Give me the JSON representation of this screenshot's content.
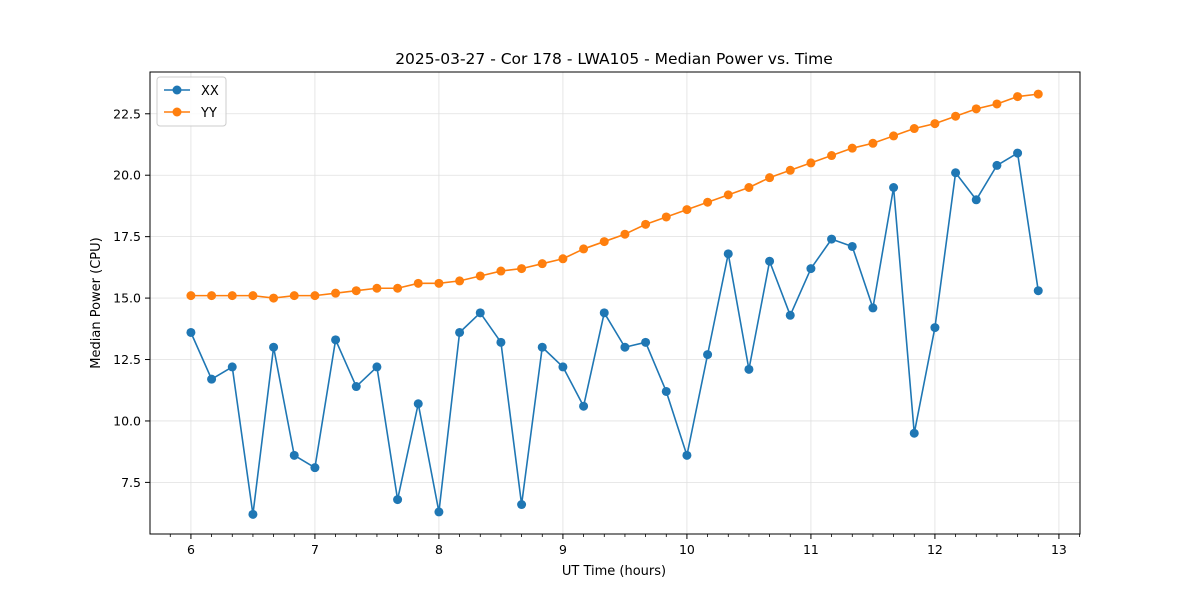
{
  "chart_data": {
    "type": "line",
    "title": "2025-03-27 - Cor 178 - LWA105 - Median Power vs. Time",
    "xlabel": "UT Time (hours)",
    "ylabel": "Median Power (CPU)",
    "xlim": [
      5.67,
      13.17
    ],
    "ylim": [
      5.4,
      24.2
    ],
    "x_ticks": [
      6,
      7,
      8,
      9,
      10,
      11,
      12,
      13
    ],
    "x_tick_labels": [
      "6",
      "7",
      "8",
      "9",
      "10",
      "11",
      "12",
      "13"
    ],
    "x_minor_step": 0.16667,
    "y_ticks": [
      7.5,
      10.0,
      12.5,
      15.0,
      17.5,
      20.0,
      22.5
    ],
    "y_tick_labels": [
      "7.5",
      "10.0",
      "12.5",
      "15.0",
      "17.5",
      "20.0",
      "22.5"
    ],
    "grid": true,
    "legend_position": "upper-left",
    "x": [
      6.0,
      6.1667,
      6.3333,
      6.5,
      6.6667,
      6.8333,
      7.0,
      7.1667,
      7.3333,
      7.5,
      7.6667,
      7.8333,
      8.0,
      8.1667,
      8.3333,
      8.5,
      8.6667,
      8.8333,
      9.0,
      9.1667,
      9.3333,
      9.5,
      9.6667,
      9.8333,
      10.0,
      10.1667,
      10.3333,
      10.5,
      10.6667,
      10.8333,
      11.0,
      11.1667,
      11.3333,
      11.5,
      11.6667,
      11.8333,
      12.0,
      12.1667,
      12.3333,
      12.5,
      12.6667,
      12.8333
    ],
    "series": [
      {
        "name": "XX",
        "color": "#1f77b4",
        "values": [
          13.6,
          11.7,
          12.2,
          6.2,
          13.0,
          8.6,
          8.1,
          13.3,
          11.4,
          12.2,
          6.8,
          10.7,
          6.3,
          13.6,
          14.4,
          13.2,
          6.6,
          13.0,
          12.2,
          10.6,
          14.4,
          13.0,
          13.2,
          11.2,
          8.6,
          12.7,
          16.8,
          12.1,
          16.5,
          14.3,
          16.2,
          17.4,
          17.1,
          14.6,
          19.5,
          9.5,
          13.8,
          20.1,
          19.0,
          20.4,
          20.9,
          15.3
        ]
      },
      {
        "name": "YY",
        "color": "#ff7f0e",
        "values": [
          15.1,
          15.1,
          15.1,
          15.1,
          15.0,
          15.1,
          15.1,
          15.2,
          15.3,
          15.4,
          15.4,
          15.6,
          15.6,
          15.7,
          15.9,
          16.1,
          16.2,
          16.4,
          16.6,
          17.0,
          17.3,
          17.6,
          18.0,
          18.3,
          18.6,
          18.9,
          19.2,
          19.5,
          19.9,
          20.2,
          20.5,
          20.8,
          21.1,
          21.3,
          21.6,
          21.9,
          22.1,
          22.4,
          22.7,
          22.9,
          23.2,
          23.3
        ]
      }
    ]
  }
}
